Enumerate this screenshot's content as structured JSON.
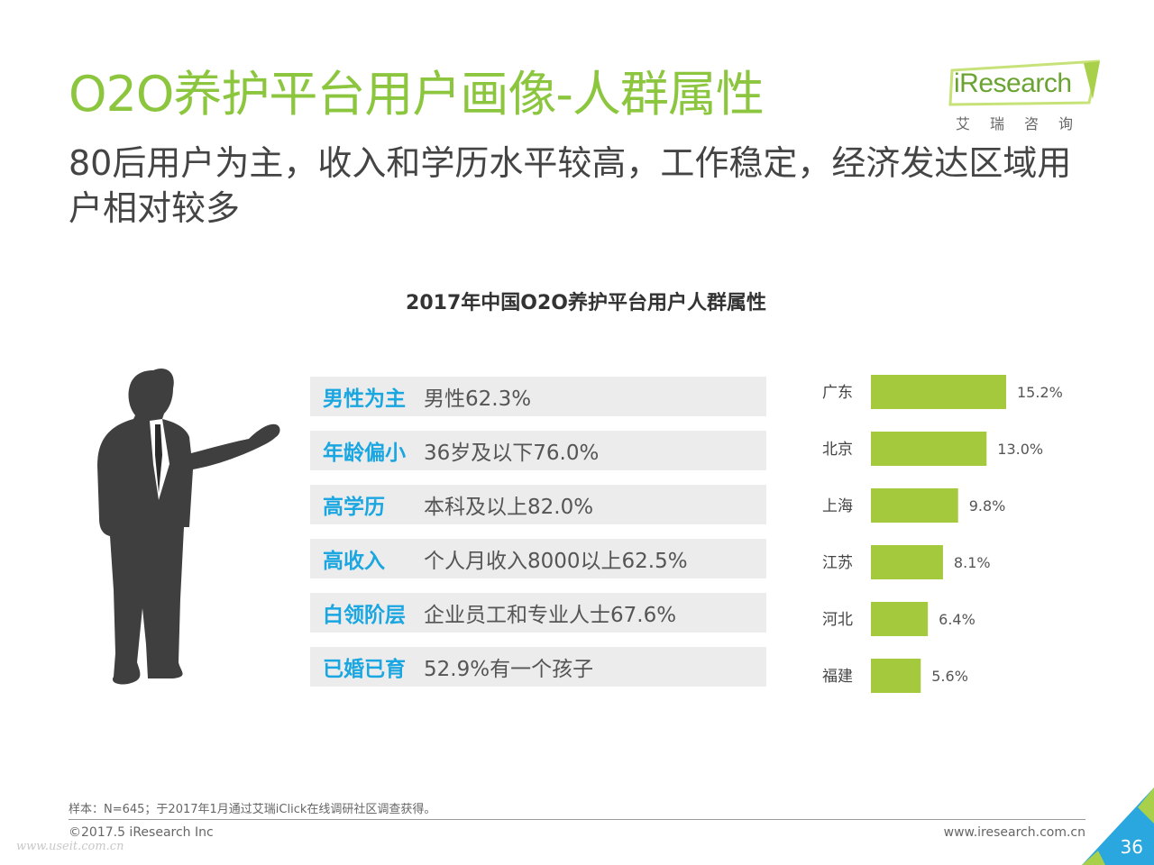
{
  "header": {
    "title": "O2O养护平台用户画像-人群属性",
    "subtitle": "80后用户为主，收入和学历水平较高，工作稳定，经济发达区域用户相对较多"
  },
  "logo": {
    "text": "iResearch",
    "sub": "艾瑞咨询"
  },
  "colors": {
    "title_green": "#8cc63f",
    "bar_green": "#a4c93c",
    "key_blue": "#1aa6e0",
    "row_bg": "#ececec",
    "corner_blue": "#2aa7df"
  },
  "attributes": [
    {
      "key": "男性为主",
      "value": "男性62.3%"
    },
    {
      "key": "年龄偏小",
      "value": "36岁及以下76.0%"
    },
    {
      "key": "高学历",
      "value": "本科及以上82.0%"
    },
    {
      "key": "高收入",
      "value": "个人月收入8000以上62.5%"
    },
    {
      "key": "白领阶层",
      "value": "企业员工和专业人士67.6%"
    },
    {
      "key": "已婚已育",
      "value": "52.9%有一个孩子"
    }
  ],
  "chart_data": {
    "type": "bar",
    "orientation": "horizontal",
    "title": "2017年中国O2O养护平台用户人群属性",
    "categories": [
      "广东",
      "北京",
      "上海",
      "江苏",
      "河北",
      "福建"
    ],
    "values": [
      15.2,
      13.0,
      9.8,
      8.1,
      6.4,
      5.6
    ],
    "value_labels": [
      "15.2%",
      "13.0%",
      "9.8%",
      "8.1%",
      "6.4%",
      "5.6%"
    ],
    "grid": false,
    "legend": "none"
  },
  "footer": {
    "note": "样本：N=645；于2017年1月通过艾瑞iClick在线调研社区调查获得。",
    "copyright": "©2017.5 iResearch Inc",
    "website": "www.iresearch.com.cn",
    "page_number": "36",
    "watermark": "www.useit.com.cn"
  }
}
